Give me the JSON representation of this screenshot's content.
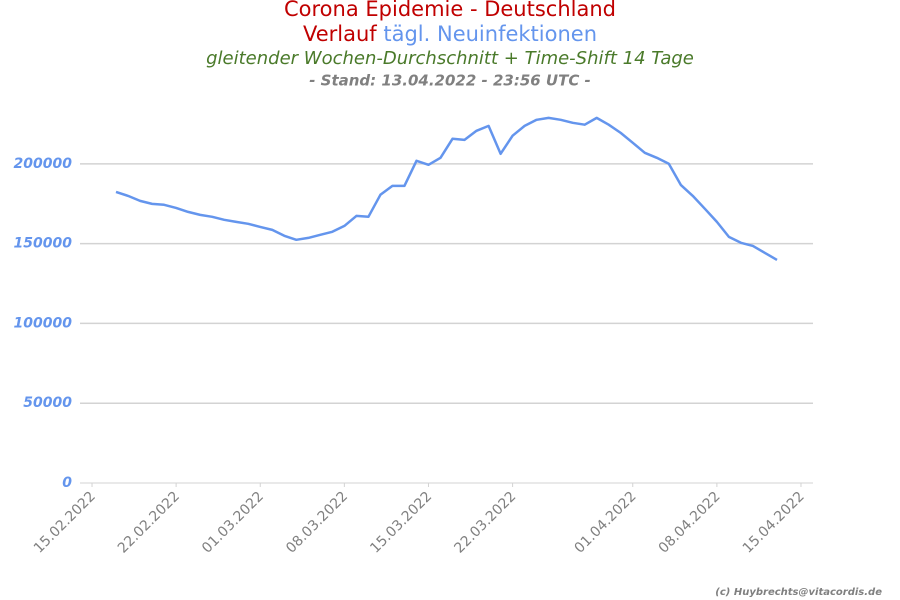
{
  "chart_data": {
    "type": "line",
    "title": "Corona Epidemie - Deutschland",
    "title_line2": [
      "Verlauf",
      "tägl. Neuinfektionen"
    ],
    "subtitle": "gleitender Wochen-Durchschnitt + Time-Shift 14 Tage",
    "status": "- Stand: 13.04.2022 - 23:56 UTC -",
    "credit": "(c) Huybrechts@vitacordis.de",
    "x": [
      "17.02.2022",
      "18.02.2022",
      "19.02.2022",
      "20.02.2022",
      "21.02.2022",
      "22.02.2022",
      "23.02.2022",
      "24.02.2022",
      "25.02.2022",
      "26.02.2022",
      "27.02.2022",
      "28.02.2022",
      "01.03.2022",
      "02.03.2022",
      "03.03.2022",
      "04.03.2022",
      "05.03.2022",
      "06.03.2022",
      "07.03.2022",
      "08.03.2022",
      "09.03.2022",
      "10.03.2022",
      "11.03.2022",
      "12.03.2022",
      "13.03.2022",
      "14.03.2022",
      "15.03.2022",
      "16.03.2022",
      "17.03.2022",
      "18.03.2022",
      "19.03.2022",
      "20.03.2022",
      "21.03.2022",
      "22.03.2022",
      "23.03.2022",
      "24.03.2022",
      "25.03.2022",
      "26.03.2022",
      "27.03.2022",
      "28.03.2022",
      "29.03.2022",
      "30.03.2022",
      "31.03.2022",
      "01.04.2022",
      "02.04.2022",
      "03.04.2022",
      "04.04.2022",
      "05.04.2022",
      "06.04.2022",
      "07.04.2022",
      "08.04.2022",
      "09.04.2022",
      "10.04.2022",
      "11.04.2022",
      "12.04.2022",
      "13.04.2022"
    ],
    "series": [
      {
        "color": "#6495ed",
        "values": [
          182400,
          179900,
          176800,
          174900,
          174300,
          172400,
          169900,
          168000,
          166800,
          164900,
          163600,
          162400,
          160500,
          158600,
          154900,
          152400,
          153600,
          155500,
          157400,
          161100,
          167400,
          166800,
          180600,
          186200,
          186200,
          201900,
          199400,
          203800,
          215700,
          215000,
          220700,
          223800,
          206300,
          217600,
          223800,
          227600,
          228800,
          227600,
          225700,
          224500,
          228800,
          224500,
          219400,
          213200,
          206900,
          203800,
          200000,
          186800,
          179900,
          171800,
          163600,
          154200,
          150500,
          148600,
          144200,
          139800
        ]
      }
    ],
    "xlim": [
      "14.02.2022",
      "16.04.2022"
    ],
    "xticks": [
      "15.02.2022",
      "22.02.2022",
      "01.03.2022",
      "08.03.2022",
      "15.03.2022",
      "22.03.2022",
      "01.04.2022",
      "08.04.2022",
      "15.04.2022"
    ],
    "ylim": [
      0,
      240000
    ],
    "yticks": [
      0,
      50000,
      100000,
      150000,
      200000
    ],
    "grid": true
  }
}
